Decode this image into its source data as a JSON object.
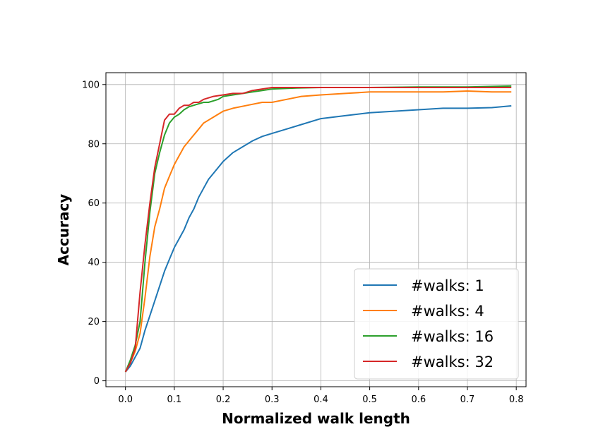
{
  "chart_data": {
    "type": "line",
    "title": "",
    "xlabel": "Normalized walk length",
    "ylabel": "Accuracy",
    "xlim": [
      -0.04,
      0.82
    ],
    "ylim": [
      -2,
      104
    ],
    "xticks": [
      0.0,
      0.1,
      0.2,
      0.3,
      0.4,
      0.5,
      0.6,
      0.7,
      0.8
    ],
    "xtick_labels": [
      "0.0",
      "0.1",
      "0.2",
      "0.3",
      "0.4",
      "0.5",
      "0.6",
      "0.7",
      "0.8"
    ],
    "yticks": [
      0,
      20,
      40,
      60,
      80,
      100
    ],
    "ytick_labels": [
      "0",
      "20",
      "40",
      "60",
      "80",
      "100"
    ],
    "grid": true,
    "legend_position": "bottom-right",
    "series": [
      {
        "name": "#walks: 1",
        "color": "#1f77b4",
        "x": [
          0.0,
          0.01,
          0.02,
          0.03,
          0.04,
          0.05,
          0.06,
          0.07,
          0.08,
          0.09,
          0.1,
          0.11,
          0.12,
          0.13,
          0.14,
          0.15,
          0.16,
          0.17,
          0.18,
          0.2,
          0.22,
          0.24,
          0.26,
          0.28,
          0.3,
          0.33,
          0.36,
          0.4,
          0.45,
          0.5,
          0.55,
          0.6,
          0.65,
          0.7,
          0.75,
          0.79
        ],
        "y": [
          3,
          5,
          8,
          11,
          17,
          22,
          27,
          32,
          37,
          41,
          45,
          48,
          51,
          55,
          58,
          62,
          65,
          68,
          70,
          74,
          77,
          79,
          81,
          82.5,
          83.5,
          85,
          86.5,
          88.5,
          89.5,
          90.5,
          91,
          91.5,
          92,
          92,
          92.2,
          92.8
        ]
      },
      {
        "name": "#walks: 4",
        "color": "#ff7f0e",
        "x": [
          0.0,
          0.01,
          0.02,
          0.03,
          0.04,
          0.05,
          0.06,
          0.07,
          0.08,
          0.09,
          0.1,
          0.11,
          0.12,
          0.13,
          0.14,
          0.15,
          0.16,
          0.17,
          0.18,
          0.2,
          0.22,
          0.25,
          0.28,
          0.3,
          0.33,
          0.36,
          0.4,
          0.45,
          0.5,
          0.55,
          0.6,
          0.65,
          0.7,
          0.75,
          0.79
        ],
        "y": [
          3,
          6,
          10,
          16,
          28,
          42,
          52,
          58,
          65,
          69,
          73,
          76,
          79,
          81,
          83,
          85,
          87,
          88,
          89,
          91,
          92,
          93,
          94,
          94,
          95,
          96,
          96.5,
          97,
          97.5,
          97.5,
          97.5,
          97.5,
          97.8,
          97.5,
          97.5
        ]
      },
      {
        "name": "#walks: 16",
        "color": "#2ca02c",
        "x": [
          0.0,
          0.01,
          0.02,
          0.03,
          0.04,
          0.05,
          0.06,
          0.07,
          0.08,
          0.09,
          0.1,
          0.11,
          0.12,
          0.13,
          0.14,
          0.15,
          0.16,
          0.17,
          0.18,
          0.19,
          0.2,
          0.22,
          0.24,
          0.26,
          0.28,
          0.3,
          0.35,
          0.4,
          0.5,
          0.6,
          0.7,
          0.79
        ],
        "y": [
          3,
          7,
          12,
          20,
          40,
          57,
          70,
          77,
          83,
          87,
          89,
          90,
          91.5,
          92.5,
          93,
          93.5,
          94,
          94,
          94.5,
          95,
          96,
          96.5,
          97,
          97.5,
          98,
          98.5,
          98.8,
          99,
          99,
          99.2,
          99.2,
          99.5
        ]
      },
      {
        "name": "#walks: 32",
        "color": "#d62728",
        "x": [
          0.0,
          0.01,
          0.02,
          0.03,
          0.04,
          0.05,
          0.06,
          0.07,
          0.08,
          0.09,
          0.1,
          0.11,
          0.12,
          0.13,
          0.14,
          0.15,
          0.16,
          0.17,
          0.18,
          0.2,
          0.22,
          0.24,
          0.26,
          0.28,
          0.3,
          0.35,
          0.4,
          0.5,
          0.6,
          0.7,
          0.79
        ],
        "y": [
          3,
          6,
          11,
          30,
          46,
          60,
          72,
          80,
          88,
          90,
          90,
          92,
          93,
          93,
          94,
          94,
          95,
          95.5,
          96,
          96.5,
          97,
          97,
          98,
          98.5,
          99,
          99,
          99,
          99,
          99,
          99,
          99
        ]
      }
    ]
  }
}
